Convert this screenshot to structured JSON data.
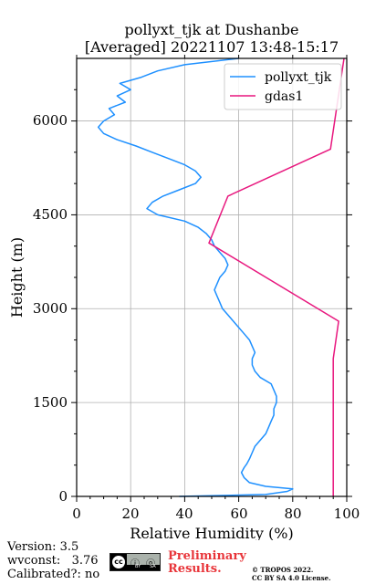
{
  "chart_data": {
    "type": "line",
    "title": "pollyxt_tjk at Dushanbe",
    "subtitle": "[Averaged] 20221107 13:48-15:17",
    "xlabel": "Relative Humidity (%)",
    "ylabel": "Height (m)",
    "xlim": [
      0,
      100
    ],
    "ylim": [
      0,
      7000
    ],
    "xticks": [
      "0",
      "20",
      "40",
      "60",
      "80",
      "100"
    ],
    "yticks": [
      "0",
      "1500",
      "3000",
      "4500",
      "6000"
    ],
    "grid": true,
    "legend_position": "top-right",
    "series": [
      {
        "name": "pollyxt_tjk",
        "color": "#1e90ff",
        "points": [
          [
            38,
            0
          ],
          [
            70,
            30
          ],
          [
            78,
            80
          ],
          [
            80,
            120
          ],
          [
            70,
            160
          ],
          [
            64,
            220
          ],
          [
            62,
            300
          ],
          [
            61,
            380
          ],
          [
            62,
            460
          ],
          [
            63,
            520
          ],
          [
            64,
            600
          ],
          [
            65,
            700
          ],
          [
            66,
            800
          ],
          [
            68,
            900
          ],
          [
            70,
            1000
          ],
          [
            71,
            1100
          ],
          [
            72,
            1200
          ],
          [
            73,
            1300
          ],
          [
            73,
            1400
          ],
          [
            74,
            1500
          ],
          [
            74,
            1600
          ],
          [
            73,
            1700
          ],
          [
            72,
            1800
          ],
          [
            68,
            1900
          ],
          [
            66,
            2000
          ],
          [
            65,
            2100
          ],
          [
            65,
            2200
          ],
          [
            66,
            2300
          ],
          [
            65,
            2400
          ],
          [
            64,
            2500
          ],
          [
            62,
            2600
          ],
          [
            60,
            2700
          ],
          [
            58,
            2800
          ],
          [
            56,
            2900
          ],
          [
            54,
            3000
          ],
          [
            53,
            3100
          ],
          [
            52,
            3200
          ],
          [
            51,
            3300
          ],
          [
            52,
            3400
          ],
          [
            53,
            3500
          ],
          [
            55,
            3600
          ],
          [
            56,
            3700
          ],
          [
            55,
            3800
          ],
          [
            53,
            3900
          ],
          [
            51,
            4000
          ],
          [
            50,
            4100
          ],
          [
            48,
            4200
          ],
          [
            45,
            4300
          ],
          [
            40,
            4400
          ],
          [
            30,
            4500
          ],
          [
            26,
            4600
          ],
          [
            28,
            4700
          ],
          [
            32,
            4800
          ],
          [
            38,
            4900
          ],
          [
            44,
            5000
          ],
          [
            46,
            5100
          ],
          [
            44,
            5200
          ],
          [
            40,
            5300
          ],
          [
            34,
            5400
          ],
          [
            28,
            5500
          ],
          [
            22,
            5600
          ],
          [
            15,
            5700
          ],
          [
            10,
            5800
          ],
          [
            8,
            5900
          ],
          [
            10,
            6000
          ],
          [
            14,
            6100
          ],
          [
            12,
            6200
          ],
          [
            18,
            6300
          ],
          [
            15,
            6400
          ],
          [
            20,
            6500
          ],
          [
            16,
            6600
          ],
          [
            24,
            6700
          ],
          [
            30,
            6800
          ],
          [
            40,
            6900
          ],
          [
            60,
            7000
          ]
        ]
      },
      {
        "name": "gdas1",
        "color": "#e8177e",
        "points": [
          [
            95,
            0
          ],
          [
            95,
            2200
          ],
          [
            97,
            2800
          ],
          [
            49,
            4050
          ],
          [
            56,
            4800
          ],
          [
            94,
            5550
          ],
          [
            99,
            7000
          ]
        ]
      }
    ]
  },
  "footer": {
    "version": "Version: 3.5",
    "wvconst": "wvconst:   3.76",
    "calibrated": "Calibrated?: no",
    "preliminary_line1": "Preliminary",
    "preliminary_line2": "Results.",
    "copyright_line1": "© TROPOS 2022.",
    "copyright_line2": "CC BY SA 4.0 License."
  },
  "badge": {
    "cc": "cc",
    "icons": "ⓘ ⓞ",
    "by": "BY",
    "sa": "SA"
  }
}
